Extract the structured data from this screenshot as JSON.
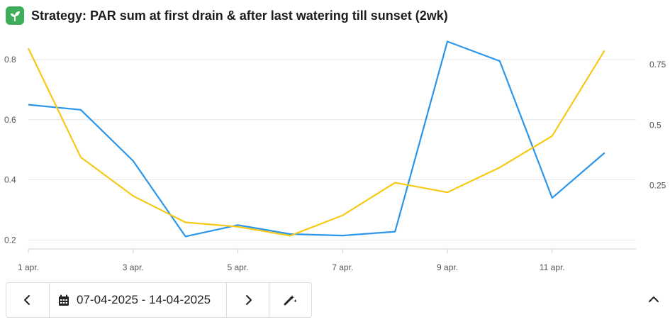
{
  "header": {
    "title": "Strategy: PAR sum at first drain & after last watering till sunset (2wk)",
    "icon": "plant-sprout-icon",
    "icon_color": "#3fae5b"
  },
  "chart_data": {
    "type": "line",
    "title": "Strategy: PAR sum at first drain & after last watering till sunset (2wk)",
    "x": [
      1,
      2,
      3,
      4,
      5,
      6,
      7,
      8,
      9,
      10,
      11,
      12
    ],
    "x_tick_values": [
      1,
      3,
      5,
      7,
      9,
      11
    ],
    "x_tick_labels": [
      "1 apr.",
      "3 apr.",
      "5 apr.",
      "7 apr.",
      "9 apr.",
      "11 apr."
    ],
    "xlim": [
      1,
      12.6
    ],
    "left_axis": {
      "ylim": [
        0.18,
        0.88
      ],
      "ticks": [
        0.2,
        0.4,
        0.6,
        0.8
      ],
      "tick_labels": [
        "0.2",
        "0.4",
        "0.6",
        "0.8"
      ]
    },
    "right_axis": {
      "ylim": [
        0.0,
        0.87
      ],
      "ticks": [
        0.25,
        0.5,
        0.75
      ],
      "tick_labels": [
        "0.25",
        "0.5",
        "0.75"
      ]
    },
    "grid": true,
    "legend": "none",
    "series": [
      {
        "axis": "left",
        "color": "#2b95ea",
        "values": [
          0.65,
          0.633,
          0.463,
          0.212,
          0.25,
          0.22,
          0.215,
          0.228,
          0.86,
          0.795,
          0.34,
          0.49
        ]
      },
      {
        "axis": "right",
        "color": "#f6c915",
        "values": [
          0.817,
          0.367,
          0.207,
          0.098,
          0.08,
          0.043,
          0.127,
          0.262,
          0.222,
          0.325,
          0.455,
          0.808
        ]
      }
    ]
  },
  "toolbar": {
    "prev_icon": "chevron-left-icon",
    "calendar_icon": "calendar-icon",
    "date_range": "07-04-2025 - 14-04-2025",
    "next_icon": "chevron-right-icon",
    "tool_icon": "magic-wand-icon",
    "collapse_icon": "chevron-up-icon"
  }
}
